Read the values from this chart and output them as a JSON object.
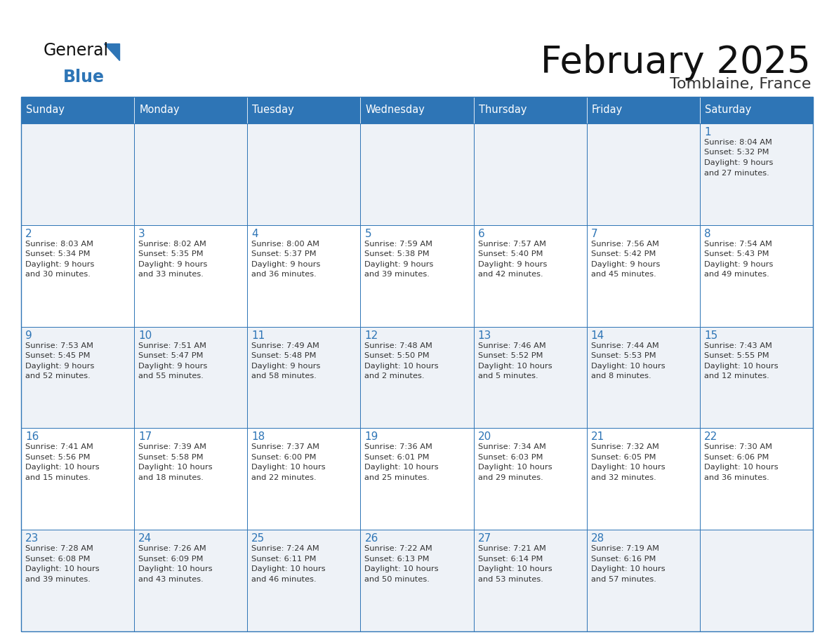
{
  "title": "February 2025",
  "subtitle": "Tomblaine, France",
  "days_of_week": [
    "Sunday",
    "Monday",
    "Tuesday",
    "Wednesday",
    "Thursday",
    "Friday",
    "Saturday"
  ],
  "header_bg": "#2e75b6",
  "header_text": "#ffffff",
  "row_bg_odd": "#eef2f7",
  "row_bg_even": "#ffffff",
  "grid_line_color": "#2e75b6",
  "day_number_color": "#2e75b6",
  "text_color": "#333333",
  "logo_general_color": "#222222",
  "logo_blue_color": "#2e75b6",
  "logo_triangle_color": "#2e75b6",
  "calendar_data": [
    [
      null,
      null,
      null,
      null,
      null,
      null,
      {
        "day": 1,
        "sunrise": "8:04 AM",
        "sunset": "5:32 PM",
        "daylight": "9 hours",
        "daylight2": "and 27 minutes."
      }
    ],
    [
      {
        "day": 2,
        "sunrise": "8:03 AM",
        "sunset": "5:34 PM",
        "daylight": "9 hours",
        "daylight2": "and 30 minutes."
      },
      {
        "day": 3,
        "sunrise": "8:02 AM",
        "sunset": "5:35 PM",
        "daylight": "9 hours",
        "daylight2": "and 33 minutes."
      },
      {
        "day": 4,
        "sunrise": "8:00 AM",
        "sunset": "5:37 PM",
        "daylight": "9 hours",
        "daylight2": "and 36 minutes."
      },
      {
        "day": 5,
        "sunrise": "7:59 AM",
        "sunset": "5:38 PM",
        "daylight": "9 hours",
        "daylight2": "and 39 minutes."
      },
      {
        "day": 6,
        "sunrise": "7:57 AM",
        "sunset": "5:40 PM",
        "daylight": "9 hours",
        "daylight2": "and 42 minutes."
      },
      {
        "day": 7,
        "sunrise": "7:56 AM",
        "sunset": "5:42 PM",
        "daylight": "9 hours",
        "daylight2": "and 45 minutes."
      },
      {
        "day": 8,
        "sunrise": "7:54 AM",
        "sunset": "5:43 PM",
        "daylight": "9 hours",
        "daylight2": "and 49 minutes."
      }
    ],
    [
      {
        "day": 9,
        "sunrise": "7:53 AM",
        "sunset": "5:45 PM",
        "daylight": "9 hours",
        "daylight2": "and 52 minutes."
      },
      {
        "day": 10,
        "sunrise": "7:51 AM",
        "sunset": "5:47 PM",
        "daylight": "9 hours",
        "daylight2": "and 55 minutes."
      },
      {
        "day": 11,
        "sunrise": "7:49 AM",
        "sunset": "5:48 PM",
        "daylight": "9 hours",
        "daylight2": "and 58 minutes."
      },
      {
        "day": 12,
        "sunrise": "7:48 AM",
        "sunset": "5:50 PM",
        "daylight": "10 hours",
        "daylight2": "and 2 minutes."
      },
      {
        "day": 13,
        "sunrise": "7:46 AM",
        "sunset": "5:52 PM",
        "daylight": "10 hours",
        "daylight2": "and 5 minutes."
      },
      {
        "day": 14,
        "sunrise": "7:44 AM",
        "sunset": "5:53 PM",
        "daylight": "10 hours",
        "daylight2": "and 8 minutes."
      },
      {
        "day": 15,
        "sunrise": "7:43 AM",
        "sunset": "5:55 PM",
        "daylight": "10 hours",
        "daylight2": "and 12 minutes."
      }
    ],
    [
      {
        "day": 16,
        "sunrise": "7:41 AM",
        "sunset": "5:56 PM",
        "daylight": "10 hours",
        "daylight2": "and 15 minutes."
      },
      {
        "day": 17,
        "sunrise": "7:39 AM",
        "sunset": "5:58 PM",
        "daylight": "10 hours",
        "daylight2": "and 18 minutes."
      },
      {
        "day": 18,
        "sunrise": "7:37 AM",
        "sunset": "6:00 PM",
        "daylight": "10 hours",
        "daylight2": "and 22 minutes."
      },
      {
        "day": 19,
        "sunrise": "7:36 AM",
        "sunset": "6:01 PM",
        "daylight": "10 hours",
        "daylight2": "and 25 minutes."
      },
      {
        "day": 20,
        "sunrise": "7:34 AM",
        "sunset": "6:03 PM",
        "daylight": "10 hours",
        "daylight2": "and 29 minutes."
      },
      {
        "day": 21,
        "sunrise": "7:32 AM",
        "sunset": "6:05 PM",
        "daylight": "10 hours",
        "daylight2": "and 32 minutes."
      },
      {
        "day": 22,
        "sunrise": "7:30 AM",
        "sunset": "6:06 PM",
        "daylight": "10 hours",
        "daylight2": "and 36 minutes."
      }
    ],
    [
      {
        "day": 23,
        "sunrise": "7:28 AM",
        "sunset": "6:08 PM",
        "daylight": "10 hours",
        "daylight2": "and 39 minutes."
      },
      {
        "day": 24,
        "sunrise": "7:26 AM",
        "sunset": "6:09 PM",
        "daylight": "10 hours",
        "daylight2": "and 43 minutes."
      },
      {
        "day": 25,
        "sunrise": "7:24 AM",
        "sunset": "6:11 PM",
        "daylight": "10 hours",
        "daylight2": "and 46 minutes."
      },
      {
        "day": 26,
        "sunrise": "7:22 AM",
        "sunset": "6:13 PM",
        "daylight": "10 hours",
        "daylight2": "and 50 minutes."
      },
      {
        "day": 27,
        "sunrise": "7:21 AM",
        "sunset": "6:14 PM",
        "daylight": "10 hours",
        "daylight2": "and 53 minutes."
      },
      {
        "day": 28,
        "sunrise": "7:19 AM",
        "sunset": "6:16 PM",
        "daylight": "10 hours",
        "daylight2": "and 57 minutes."
      },
      null
    ]
  ]
}
